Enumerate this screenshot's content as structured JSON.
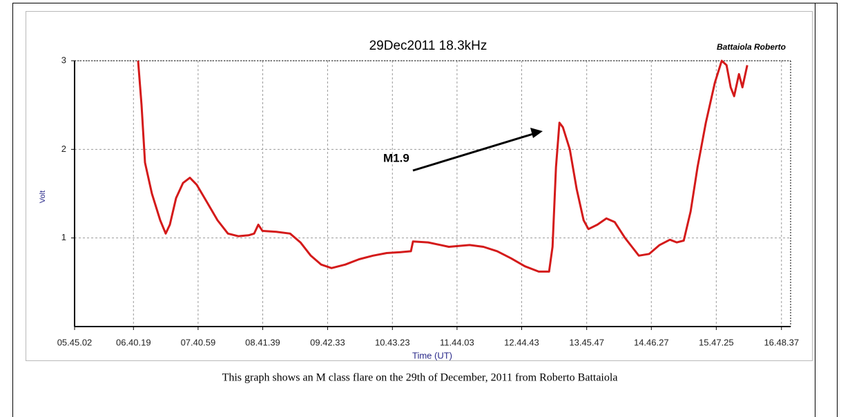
{
  "chart_data": {
    "type": "line",
    "title": "29Dec2011 18.3kHz",
    "subtitle": "Battaiola Roberto",
    "y_label": "Volt",
    "x_label": "Time (UT)",
    "annotation": "M1.9",
    "caption": "This graph shows an M class flare on the 29th of December, 2011 from Roberto Battaiola",
    "grid": true,
    "xlim": [
      20702,
      61032
    ],
    "ylim": [
      0,
      3
    ],
    "yticks": [
      1,
      2,
      3
    ],
    "xticks": [
      {
        "value": 20702,
        "label": "05.45.02"
      },
      {
        "value": 24019,
        "label": "06.40.19"
      },
      {
        "value": 27659,
        "label": "07.40.59"
      },
      {
        "value": 31299,
        "label": "08.41.39"
      },
      {
        "value": 34953,
        "label": "09.42.33"
      },
      {
        "value": 38603,
        "label": "10.43.23"
      },
      {
        "value": 42243,
        "label": "11.44.03"
      },
      {
        "value": 45883,
        "label": "12.44.43"
      },
      {
        "value": 49547,
        "label": "13.45.47"
      },
      {
        "value": 53187,
        "label": "14.46.27"
      },
      {
        "value": 56845,
        "label": "15.47.25"
      },
      {
        "value": 60517,
        "label": "16.48.37"
      }
    ],
    "series": [
      {
        "color": "#d41a1a",
        "x": [
          24281,
          24475,
          24670,
          25059,
          25526,
          25837,
          26070,
          26420,
          26809,
          27198,
          27587,
          28171,
          28754,
          29338,
          29921,
          30505,
          30816,
          31049,
          31283,
          32061,
          32839,
          33422,
          34006,
          34589,
          35173,
          35951,
          36729,
          37507,
          38285,
          39063,
          39647,
          39763,
          40619,
          41786,
          42953,
          43731,
          44509,
          45287,
          46065,
          46843,
          47426,
          47621,
          47816,
          48010,
          48204,
          48593,
          48982,
          49371,
          49644,
          50149,
          50655,
          51122,
          51706,
          52095,
          52484,
          53067,
          53651,
          54234,
          54623,
          55012,
          55401,
          55790,
          56257,
          56763,
          57152,
          57424,
          57658,
          57852,
          58124,
          58319,
          58591
        ],
        "values": [
          3.0,
          2.5,
          1.85,
          1.5,
          1.2,
          1.05,
          1.15,
          1.45,
          1.62,
          1.68,
          1.6,
          1.4,
          1.2,
          1.05,
          1.02,
          1.03,
          1.05,
          1.15,
          1.08,
          1.07,
          1.05,
          0.95,
          0.8,
          0.7,
          0.66,
          0.7,
          0.76,
          0.8,
          0.83,
          0.84,
          0.85,
          0.96,
          0.95,
          0.9,
          0.92,
          0.9,
          0.85,
          0.77,
          0.68,
          0.62,
          0.62,
          0.9,
          1.8,
          2.3,
          2.25,
          2.0,
          1.55,
          1.2,
          1.1,
          1.15,
          1.22,
          1.18,
          1.0,
          0.9,
          0.8,
          0.82,
          0.92,
          0.98,
          0.95,
          0.97,
          1.3,
          1.8,
          2.3,
          2.75,
          3.0,
          2.95,
          2.7,
          2.6,
          2.85,
          2.7,
          2.95
        ]
      }
    ]
  }
}
